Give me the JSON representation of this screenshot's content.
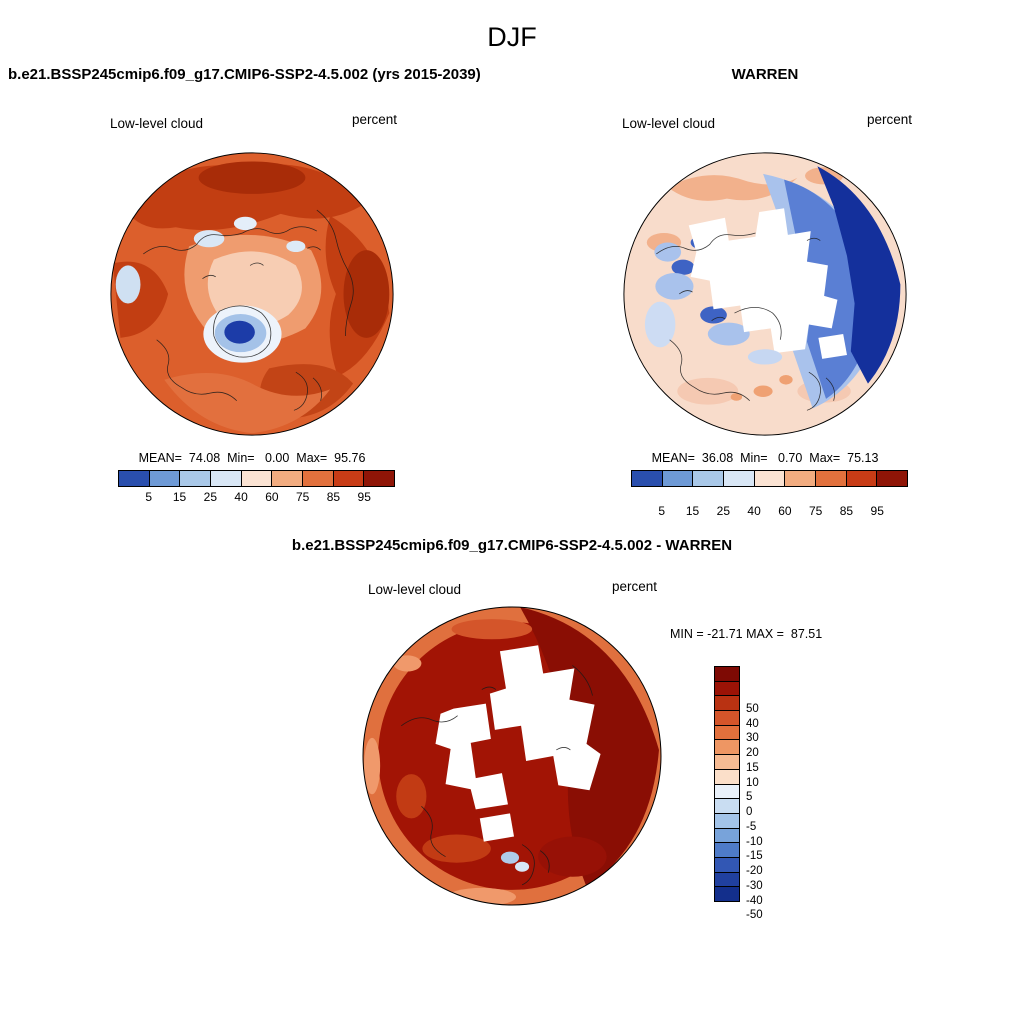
{
  "figure_title": "DJF",
  "panel_model": {
    "header": "b.e21.BSSP245cmip6.f09_g17.CMIP6-SSP2-4.5.002 (yrs 2015-2039)",
    "field_label": "Low-level cloud",
    "units_label": "percent",
    "stats_line": "MEAN=  74.08  Min=   0.00  Max=  95.76"
  },
  "panel_obs": {
    "header": "WARREN",
    "field_label": "Low-level cloud",
    "units_label": "percent",
    "stats_line": "MEAN=  36.08  Min=   0.70  Max=  75.13"
  },
  "panel_diff": {
    "header": "b.e21.BSSP245cmip6.f09_g17.CMIP6-SSP2-4.5.002 - WARREN",
    "field_label": "Low-level cloud",
    "units_label": "percent",
    "minmax_line": "MIN = -21.71 MAX =  87.51"
  },
  "percent_colorbar": {
    "ticks": [
      "5",
      "15",
      "25",
      "40",
      "60",
      "75",
      "85",
      "95"
    ],
    "colors": [
      "#2A4FAE",
      "#6E9AD6",
      "#A9C8E8",
      "#D9E7F6",
      "#FBE3D3",
      "#F2AC80",
      "#E2713D",
      "#C83C16",
      "#8F1507"
    ]
  },
  "diff_colorbar": {
    "labels": [
      "50",
      "40",
      "30",
      "20",
      "15",
      "10",
      "5",
      "0",
      "-5",
      "-10",
      "-15",
      "-20",
      "-30",
      "-40",
      "-50"
    ],
    "colors": [
      "#7E0A04",
      "#9B1306",
      "#B93212",
      "#D4552A",
      "#E2703C",
      "#EE9663",
      "#F6BB93",
      "#FBDFC9",
      "#E9F1FA",
      "#C9DDF2",
      "#A3C4E9",
      "#78A3DA",
      "#4E7BC8",
      "#3257B4",
      "#20409F",
      "#132F8C"
    ]
  },
  "chart_data": [
    {
      "type": "heatmap",
      "subtype": "polar-stereographic-contour-map",
      "season": "DJF",
      "title": "b.e21.BSSP245cmip6.f09_g17.CMIP6-SSP2-4.5.002 (yrs 2015-2039)",
      "variable": "Low-level cloud",
      "units": "percent",
      "stats": {
        "mean": 74.08,
        "min": 0.0,
        "max": 95.76
      },
      "contour_levels": [
        5,
        15,
        25,
        40,
        60,
        75,
        85,
        95
      ],
      "palette": [
        "#2A4FAE",
        "#6E9AD6",
        "#A9C8E8",
        "#D9E7F6",
        "#FBE3D3",
        "#F2AC80",
        "#E2713D",
        "#C83C16",
        "#8F1507"
      ],
      "legend_position": "bottom"
    },
    {
      "type": "heatmap",
      "subtype": "polar-stereographic-contour-map",
      "season": "DJF",
      "title": "WARREN",
      "variable": "Low-level cloud",
      "units": "percent",
      "stats": {
        "mean": 36.08,
        "min": 0.7,
        "max": 75.13
      },
      "contour_levels": [
        5,
        15,
        25,
        40,
        60,
        75,
        85,
        95
      ],
      "palette": [
        "#2A4FAE",
        "#6E9AD6",
        "#A9C8E8",
        "#D9E7F6",
        "#FBE3D3",
        "#F2AC80",
        "#E2713D",
        "#C83C16",
        "#8F1507"
      ],
      "legend_position": "bottom"
    },
    {
      "type": "heatmap",
      "subtype": "polar-stereographic-contour-map",
      "season": "DJF",
      "title": "b.e21.BSSP245cmip6.f09_g17.CMIP6-SSP2-4.5.002 - WARREN",
      "variable": "Low-level cloud",
      "units": "percent",
      "stats": {
        "min": -21.71,
        "max": 87.51
      },
      "contour_levels": [
        -50,
        -40,
        -30,
        -20,
        -15,
        -10,
        -5,
        0,
        5,
        10,
        15,
        20,
        30,
        40,
        50
      ],
      "palette_top_to_bottom": [
        "#7E0A04",
        "#9B1306",
        "#B93212",
        "#D4552A",
        "#E2703C",
        "#EE9663",
        "#F6BB93",
        "#FBDFC9",
        "#E9F1FA",
        "#C9DDF2",
        "#A3C4E9",
        "#78A3DA",
        "#4E7BC8",
        "#3257B4",
        "#20409F",
        "#132F8C"
      ],
      "legend_position": "right"
    }
  ]
}
